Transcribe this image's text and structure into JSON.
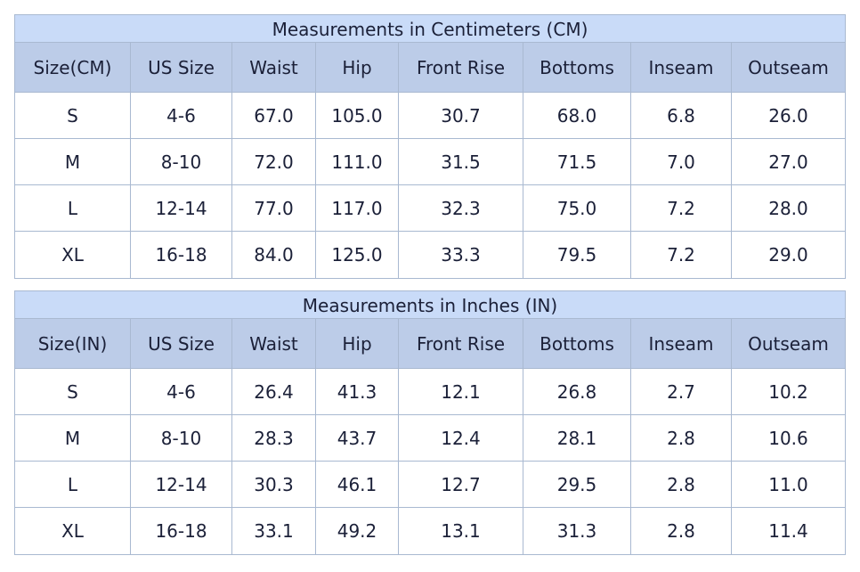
{
  "tables": [
    {
      "title": "Measurements in Centimeters (CM)",
      "headers": [
        "Size(CM)",
        "US Size",
        "Waist",
        "Hip",
        "Front Rise",
        "Bottoms",
        "Inseam",
        "Outseam"
      ],
      "rows": [
        [
          "S",
          "4-6",
          "67.0",
          "105.0",
          "30.7",
          "68.0",
          "6.8",
          "26.0"
        ],
        [
          "M",
          "8-10",
          "72.0",
          "111.0",
          "31.5",
          "71.5",
          "7.0",
          "27.0"
        ],
        [
          "L",
          "12-14",
          "77.0",
          "117.0",
          "32.3",
          "75.0",
          "7.2",
          "28.0"
        ],
        [
          "XL",
          "16-18",
          "84.0",
          "125.0",
          "33.3",
          "79.5",
          "7.2",
          "29.0"
        ]
      ]
    },
    {
      "title": "Measurements in Inches (IN)",
      "headers": [
        "Size(IN)",
        "US Size",
        "Waist",
        "Hip",
        "Front Rise",
        "Bottoms",
        "Inseam",
        "Outseam"
      ],
      "rows": [
        [
          "S",
          "4-6",
          "26.4",
          "41.3",
          "12.1",
          "26.8",
          "2.7",
          "10.2"
        ],
        [
          "M",
          "8-10",
          "28.3",
          "43.7",
          "12.4",
          "28.1",
          "2.8",
          "10.6"
        ],
        [
          "L",
          "12-14",
          "30.3",
          "46.1",
          "12.7",
          "29.5",
          "2.8",
          "11.0"
        ],
        [
          "XL",
          "16-18",
          "33.1",
          "49.2",
          "13.1",
          "31.3",
          "2.8",
          "11.4"
        ]
      ]
    }
  ]
}
